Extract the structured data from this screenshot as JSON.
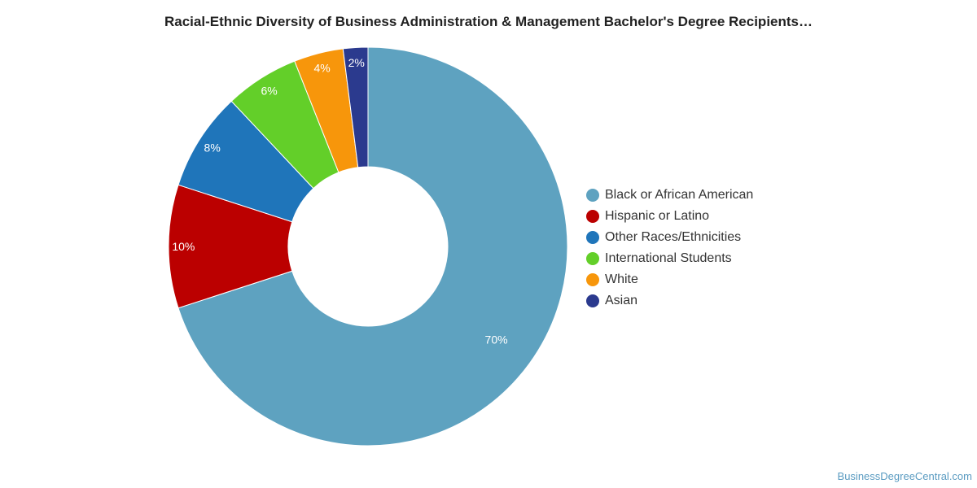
{
  "chart_data": {
    "type": "pie",
    "title": "Racial-Ethnic Diversity of Business Administration & Management Bachelor's Degree Recipients…",
    "legend_position": "right",
    "categories": [
      "Black or African American",
      "Hispanic or Latino",
      "Other Races/Ethnicities",
      "International Students",
      "White",
      "Asian"
    ],
    "values": [
      70,
      10,
      8,
      6,
      4,
      2
    ],
    "labels": [
      "70%",
      "10%",
      "8%",
      "6%",
      "4%",
      "2%"
    ],
    "colors": [
      "#5ea2c0",
      "#bb0000",
      "#1f75ba",
      "#63cf29",
      "#f7960b",
      "#2b3a8e"
    ]
  },
  "watermark": "BusinessDegreeCentral.com"
}
